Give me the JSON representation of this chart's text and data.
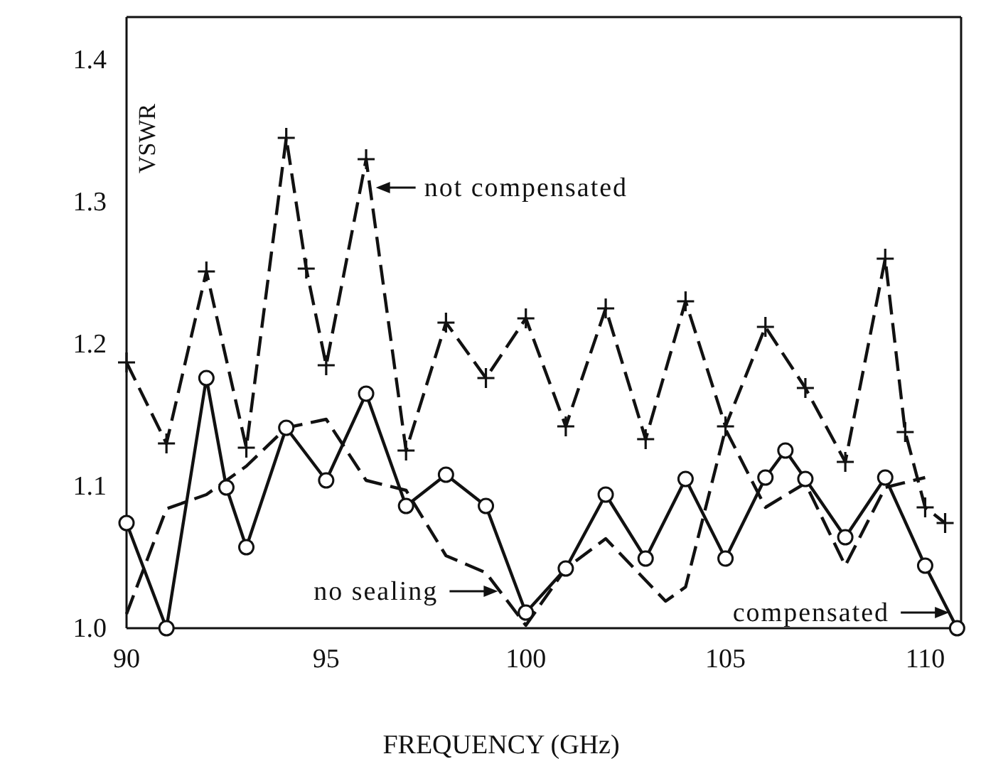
{
  "chart_data": {
    "type": "line",
    "xlabel": "FREQUENCY (GHz)",
    "ylabel": "VSWR",
    "xlim": [
      90,
      110.9
    ],
    "ylim": [
      1.0,
      1.43
    ],
    "xticks": [
      90,
      95,
      100,
      105,
      110
    ],
    "yticks": [
      {
        "value": 1.0,
        "label": "1.0"
      },
      {
        "value": 1.1,
        "label": "1.1"
      },
      {
        "value": 1.2,
        "label": "1.2"
      },
      {
        "value": 1.3,
        "label": "1.3"
      },
      {
        "value": 1.4,
        "label": "1.4"
      }
    ],
    "grid": false,
    "annotations": [
      {
        "text": "not compensated",
        "x": 96.1,
        "y": 1.31
      },
      {
        "text": "no sealing",
        "x": 99.3,
        "y": 1.026
      },
      {
        "text": "compensated",
        "x": 110.6,
        "y": 1.011
      }
    ],
    "series": [
      {
        "color": "#111111",
        "marker": "cross",
        "line_style": "dashed",
        "x": [
          90,
          91,
          92,
          93,
          94,
          94.5,
          95,
          96,
          97,
          98,
          99,
          100,
          101,
          102,
          103,
          104,
          105,
          106,
          107,
          108,
          109,
          109.5,
          110,
          110.5
        ],
        "values": [
          1.187,
          1.13,
          1.251,
          1.127,
          1.345,
          1.253,
          1.185,
          1.33,
          1.125,
          1.215,
          1.176,
          1.218,
          1.142,
          1.225,
          1.133,
          1.23,
          1.142,
          1.212,
          1.169,
          1.117,
          1.26,
          1.138,
          1.085,
          1.074
        ]
      },
      {
        "color": "#111111",
        "marker": "none",
        "line_style": "dashed",
        "x": [
          90,
          91,
          92,
          93,
          94,
          95,
          96,
          97,
          98,
          99,
          100,
          101,
          102,
          103.5,
          104,
          105,
          106,
          107,
          108,
          109,
          110
        ],
        "values": [
          1.01,
          1.084,
          1.094,
          1.114,
          1.141,
          1.147,
          1.104,
          1.097,
          1.051,
          1.039,
          1.002,
          1.042,
          1.063,
          1.019,
          1.029,
          1.14,
          1.085,
          1.102,
          1.044,
          1.099,
          1.106
        ]
      },
      {
        "color": "#111111",
        "marker": "circle",
        "line_style": "solid",
        "x": [
          90,
          91,
          92,
          92.5,
          93,
          94,
          95,
          96,
          97,
          98,
          99,
          100,
          101,
          102,
          103,
          104,
          105,
          106,
          106.5,
          107,
          108,
          109,
          110,
          110.8
        ],
        "values": [
          1.074,
          1.0,
          1.176,
          1.099,
          1.057,
          1.141,
          1.104,
          1.165,
          1.086,
          1.108,
          1.086,
          1.011,
          1.042,
          1.094,
          1.049,
          1.105,
          1.049,
          1.106,
          1.125,
          1.105,
          1.064,
          1.106,
          1.044,
          1.0
        ]
      }
    ]
  }
}
